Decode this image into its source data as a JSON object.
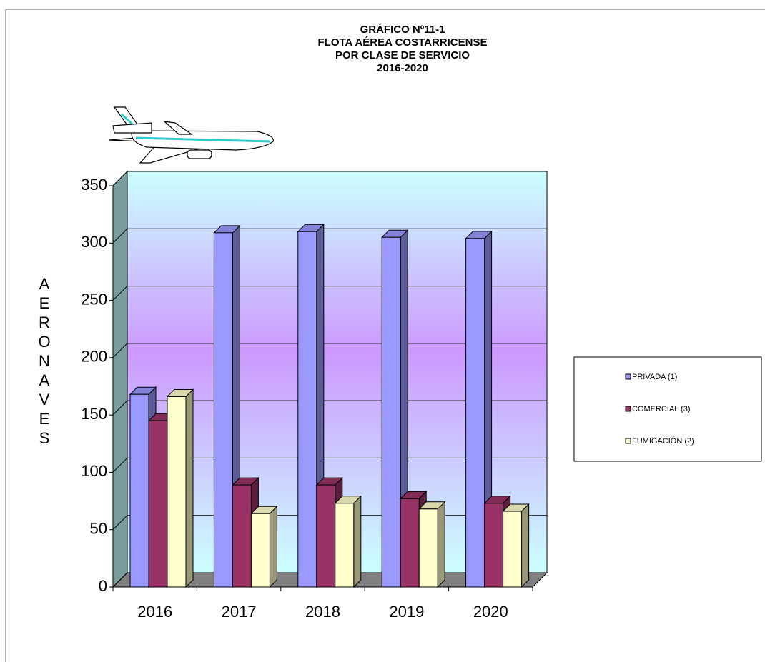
{
  "chart_data": {
    "type": "bar3d",
    "title": [
      "GRÁFICO Nº11-1",
      "FLOTA AÉREA COSTARRICENSE",
      "POR CLASE DE SERVICIO",
      "2016-2020"
    ],
    "y_axis_title": "AERONAVES",
    "categories": [
      "2016",
      "2017",
      "2018",
      "2019",
      "2020"
    ],
    "series": [
      {
        "name": "PRIVADA (1)",
        "color": "#9999ff",
        "values": [
          168,
          309,
          310,
          305,
          304
        ]
      },
      {
        "name": "COMERCIAL (3)",
        "color": "#993366",
        "values": [
          145,
          89,
          89,
          77,
          73
        ]
      },
      {
        "name": "FUMIGACIÓN (2)",
        "color": "#ffffcc",
        "values": [
          166,
          64,
          73,
          68,
          66
        ]
      }
    ],
    "ylim": [
      0,
      350
    ],
    "yticks": [
      0,
      50,
      100,
      150,
      200,
      250,
      300,
      350
    ],
    "grid": true,
    "legend": "right"
  }
}
